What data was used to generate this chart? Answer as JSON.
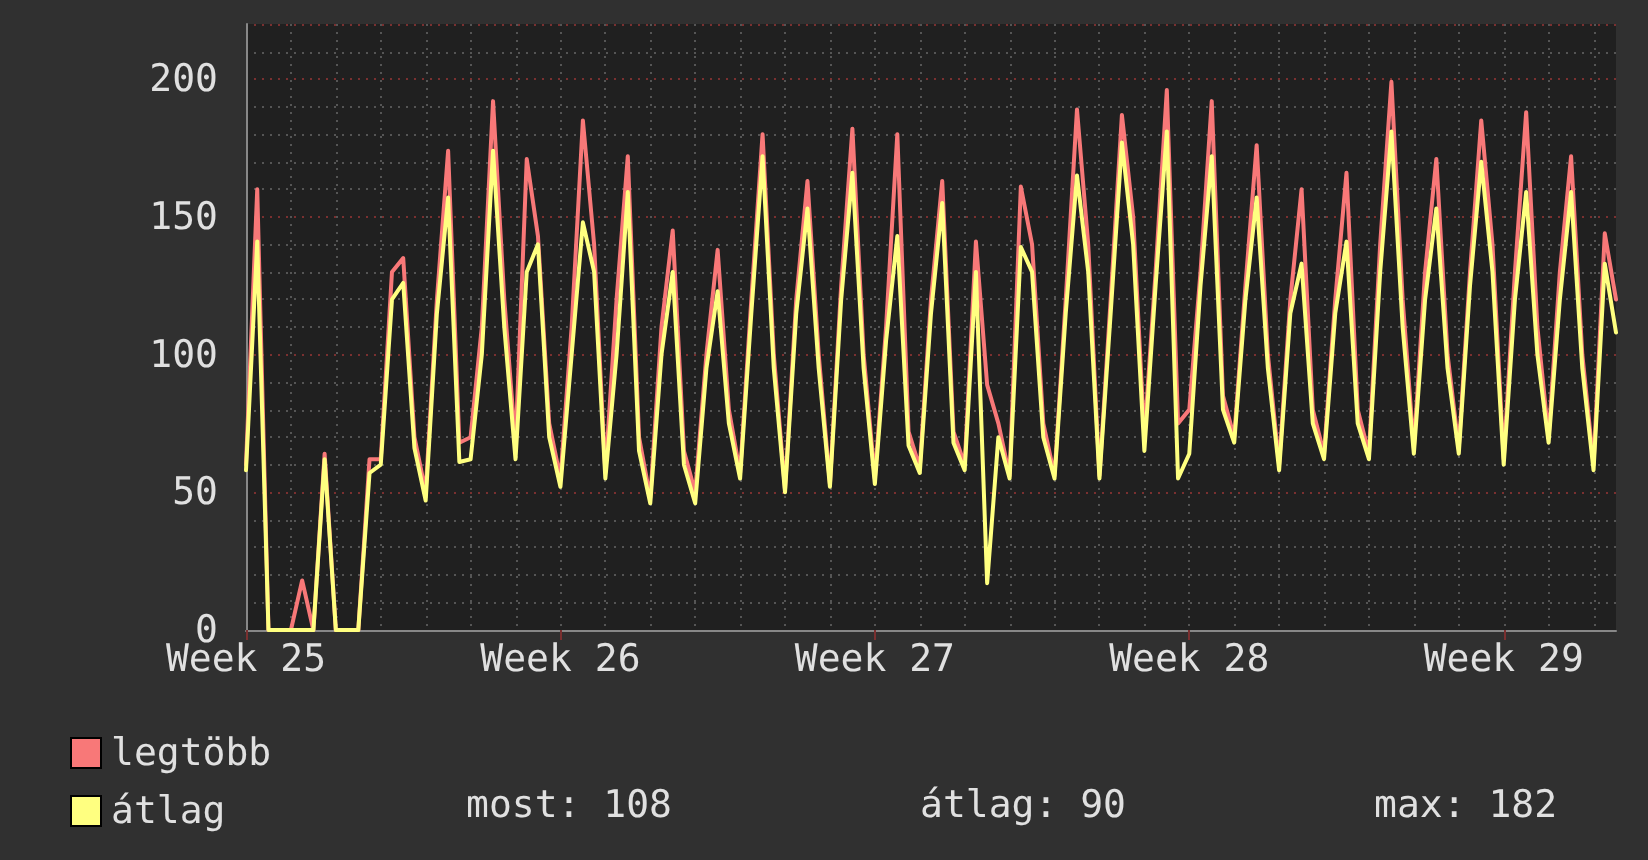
{
  "chart_data": {
    "type": "line",
    "categories": [
      "Week 25",
      null,
      null,
      null,
      null,
      null,
      null,
      null,
      null,
      null,
      null,
      null,
      null,
      null,
      null,
      null,
      null,
      null,
      null,
      null,
      null,
      null,
      null,
      null,
      null,
      null,
      null,
      null,
      "Week 26",
      null,
      null,
      null,
      null,
      null,
      null,
      null,
      null,
      null,
      null,
      null,
      null,
      null,
      null,
      null,
      null,
      null,
      null,
      null,
      null,
      null,
      null,
      null,
      null,
      null,
      null,
      null,
      "Week 27",
      null,
      null,
      null,
      null,
      null,
      null,
      null,
      null,
      null,
      null,
      null,
      null,
      null,
      null,
      null,
      null,
      null,
      null,
      null,
      null,
      null,
      null,
      null,
      null,
      null,
      null,
      null,
      "Week 28",
      null,
      null,
      null,
      null,
      null,
      null,
      null,
      null,
      null,
      null,
      null,
      null,
      null,
      null,
      null,
      null,
      null,
      null,
      null,
      null,
      null,
      null,
      null,
      null,
      null,
      null,
      null,
      "Week 29",
      null,
      null,
      null,
      null,
      null,
      null,
      null,
      null,
      null,
      null
    ],
    "series": [
      {
        "name": "legtöbb",
        "color": "#f87878",
        "values": [
          60,
          160,
          0,
          0,
          0,
          18,
          0,
          64,
          0,
          0,
          0,
          62,
          62,
          130,
          135,
          70,
          50,
          120,
          174,
          68,
          70,
          110,
          192,
          120,
          67,
          171,
          143,
          75,
          55,
          110,
          185,
          140,
          57,
          120,
          172,
          70,
          48,
          110,
          145,
          65,
          50,
          100,
          138,
          80,
          57,
          120,
          180,
          100,
          51,
          120,
          163,
          100,
          53,
          125,
          182,
          100,
          55,
          110,
          180,
          72,
          59,
          120,
          163,
          72,
          60,
          141,
          89,
          75,
          56,
          161,
          140,
          75,
          56,
          120,
          189,
          140,
          56,
          120,
          187,
          150,
          70,
          130,
          196,
          75,
          80,
          130,
          192,
          85,
          70,
          125,
          176,
          100,
          60,
          120,
          160,
          80,
          64,
          120,
          166,
          80,
          64,
          140,
          199,
          120,
          66,
          130,
          171,
          100,
          66,
          130,
          185,
          140,
          62,
          130,
          188,
          110,
          70,
          130,
          172,
          100,
          60,
          144,
          120
        ]
      },
      {
        "name": "átlag",
        "color": "#ffff80",
        "values": [
          58,
          141,
          0,
          0,
          0,
          0,
          0,
          62,
          0,
          0,
          0,
          57,
          60,
          120,
          126,
          66,
          47,
          115,
          157,
          61,
          62,
          100,
          174,
          110,
          62,
          130,
          140,
          70,
          52,
          100,
          148,
          130,
          55,
          100,
          159,
          65,
          46,
          100,
          130,
          60,
          46,
          95,
          123,
          75,
          55,
          115,
          172,
          95,
          50,
          115,
          153,
          95,
          52,
          120,
          166,
          95,
          53,
          105,
          143,
          67,
          57,
          115,
          155,
          68,
          58,
          130,
          17,
          70,
          55,
          139,
          130,
          70,
          55,
          115,
          165,
          130,
          55,
          115,
          177,
          140,
          65,
          125,
          181,
          55,
          64,
          125,
          172,
          80,
          68,
          120,
          157,
          95,
          58,
          115,
          133,
          75,
          62,
          115,
          141,
          75,
          62,
          130,
          181,
          110,
          64,
          120,
          153,
          95,
          64,
          125,
          170,
          130,
          60,
          120,
          159,
          100,
          68,
          120,
          159,
          95,
          58,
          133,
          108
        ]
      }
    ],
    "ylim": [
      0,
      220
    ],
    "yticks": [
      0,
      50,
      100,
      150,
      200
    ],
    "grid": true,
    "legend": "bottom left",
    "marker": "none",
    "line_style": "solid",
    "annotations": [
      "most: 108",
      "átlag: 90",
      "max: 182"
    ]
  }
}
